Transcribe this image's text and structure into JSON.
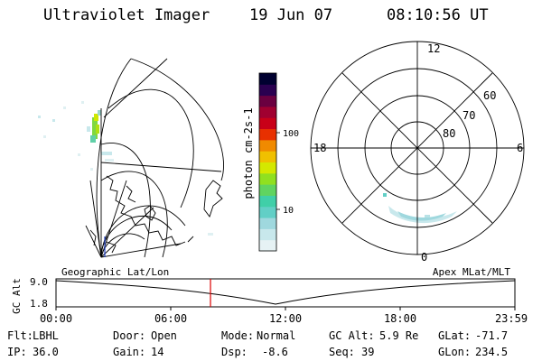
{
  "header": {
    "title": "Ultraviolet Imager",
    "date": "19 Jun 07",
    "time": "08:10:56 UT"
  },
  "colorbar": {
    "title": "photon cm-2s-1",
    "ticks": [
      "100",
      "10"
    ],
    "colors": [
      "#e6f2f4",
      "#c8e8ec",
      "#9fd8de",
      "#62cfc6",
      "#40cfa8",
      "#60d460",
      "#90e020",
      "#d4e800",
      "#f0c000",
      "#f08a00",
      "#e83000",
      "#c80018",
      "#a00030",
      "#6a0040",
      "#2a0050",
      "#000030"
    ]
  },
  "polar_plot": {
    "mlt_labels": {
      "top": "12",
      "left": "18",
      "right": "6",
      "bottom": "0"
    },
    "lat_labels": [
      "60",
      "70",
      "80"
    ]
  },
  "timeline": {
    "axis_title": "GC Alt",
    "y_ticks": [
      "9.0",
      "1.8"
    ],
    "left_label": "Geographic Lat/Lon",
    "right_label": "Apex MLat/MLT",
    "x_ticks": [
      "00:00",
      "06:00",
      "12:00",
      "18:00",
      "23:59"
    ],
    "marker_color": "#dd0000"
  },
  "info": {
    "row1": [
      {
        "key": "Flt:",
        "value": "LBHL"
      },
      {
        "key": "Door:",
        "value": "Open"
      },
      {
        "key": "Mode:",
        "value": "Normal"
      },
      {
        "key": "GC Alt:",
        "value": "5.9 Re"
      },
      {
        "key": "GLat:",
        "value": "-71.7"
      }
    ],
    "row2": [
      {
        "key": "IP:",
        "value": "36.0"
      },
      {
        "key": "Gain:",
        "value": "14"
      },
      {
        "key": "Dsp:",
        "value": "-8.6"
      },
      {
        "key": "Seq:",
        "value": "39"
      },
      {
        "key": "GLon:",
        "value": "234.5"
      }
    ]
  }
}
